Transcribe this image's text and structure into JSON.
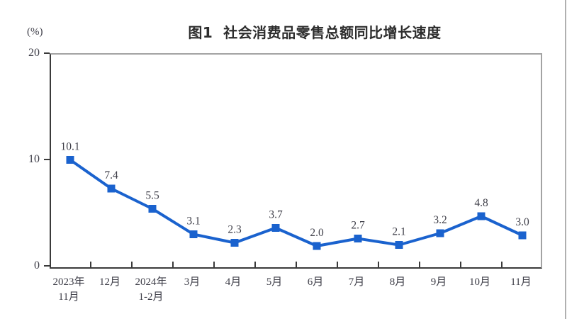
{
  "chart_data": {
    "type": "line",
    "title": "图1  社会消费品零售总额同比增长速度",
    "unit_label": "(%)",
    "categories": [
      "2023年\n11月",
      "12月",
      "2024年\n1-2月",
      "3月",
      "4月",
      "5月",
      "6月",
      "7月",
      "8月",
      "9月",
      "10月",
      "11月"
    ],
    "values": [
      10.1,
      7.4,
      5.5,
      3.1,
      2.3,
      3.7,
      2.0,
      2.7,
      2.1,
      3.2,
      4.8,
      3.0
    ],
    "data_labels": [
      "10.1",
      "7.4",
      "5.5",
      "3.1",
      "2.3",
      "3.7",
      "2.0",
      "2.7",
      "2.1",
      "3.2",
      "4.8",
      "3.0"
    ],
    "xlabel": "",
    "ylabel": "(%)",
    "ylim": [
      0,
      20
    ],
    "yticks": [
      0,
      10,
      20
    ],
    "grid": false,
    "legend": "none",
    "line_color": "#1a62ce",
    "marker": "square",
    "label_color": "#3e3e48",
    "axis_color": "#3a3a3a"
  }
}
